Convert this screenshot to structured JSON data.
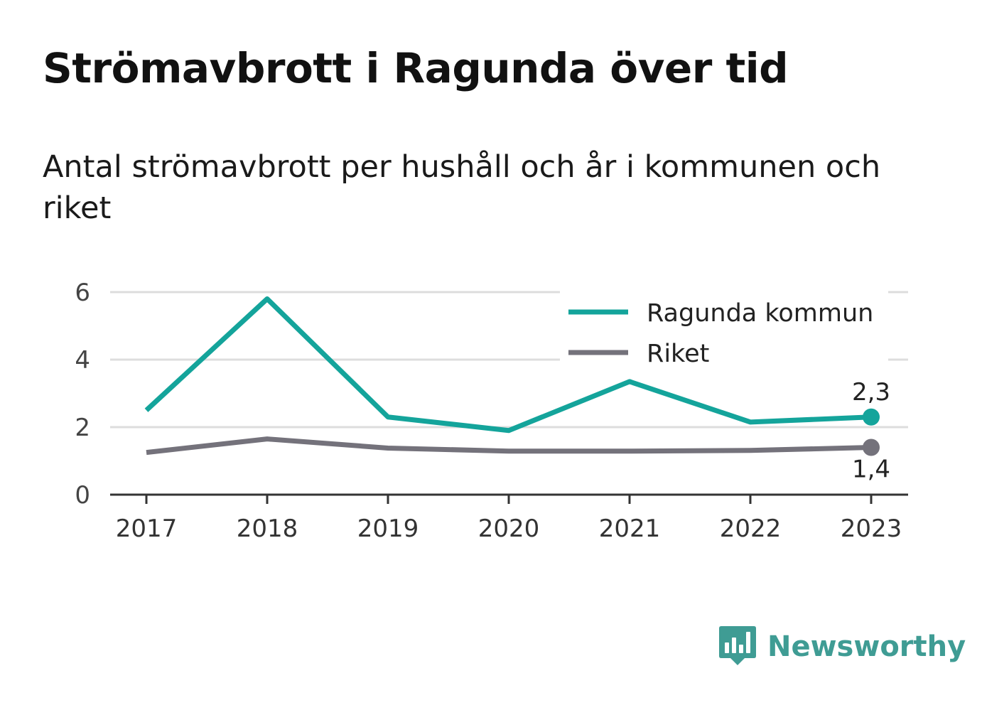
{
  "chart_data": {
    "type": "line",
    "title": "Strömavbrott i Ragunda över tid",
    "subtitle": "Antal strömavbrott per hushåll och år i kommunen och riket",
    "x": [
      "2017",
      "2018",
      "2019",
      "2020",
      "2021",
      "2022",
      "2023"
    ],
    "series": [
      {
        "name": "Ragunda kommun",
        "color": "#14a49b",
        "values": [
          2.5,
          5.8,
          2.3,
          1.9,
          3.35,
          2.15,
          2.3
        ],
        "end_label": "2,3"
      },
      {
        "name": "Riket",
        "color": "#74727b",
        "values": [
          1.25,
          1.65,
          1.38,
          1.29,
          1.29,
          1.31,
          1.4
        ],
        "end_label": "1,4"
      }
    ],
    "ylim": [
      0,
      6
    ],
    "yticks": [
      "0",
      "2",
      "4",
      "6"
    ],
    "grid": true,
    "legend_position": "top-right",
    "xlabel": "",
    "ylabel": ""
  },
  "brand": {
    "name": "Newsworthy",
    "color": "#3f9c94"
  }
}
